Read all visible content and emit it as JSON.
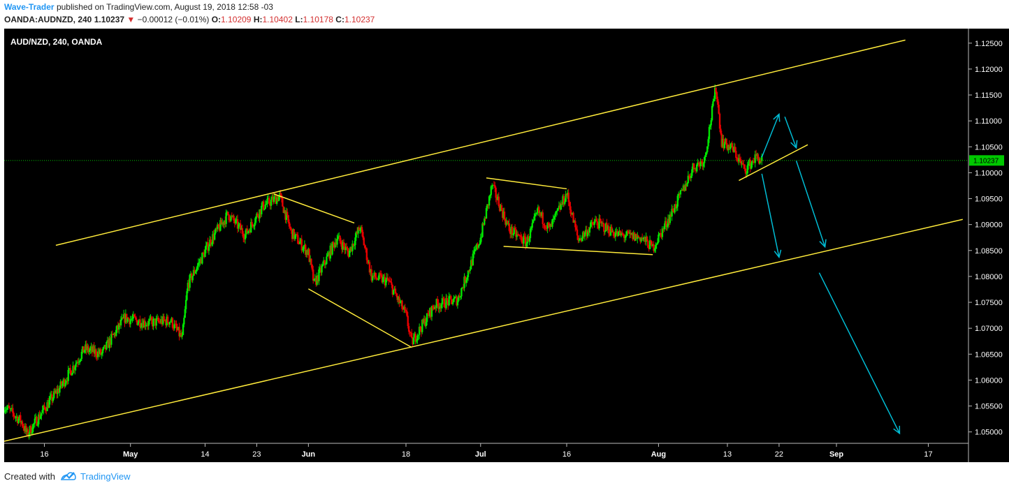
{
  "header": {
    "author": "Wave-Trader",
    "published_text": "published on TradingView.com, August 19, 2018 12:58 -03",
    "symbol": "OANDA:AUDNZD, 240",
    "last": "1.10237",
    "change_arrow": "▼",
    "change": "−0.00012 (−0.01%)",
    "o_label": "O:",
    "o_value": "1.10209",
    "h_label": "H:",
    "h_value": "1.10402",
    "l_label": "L:",
    "l_value": "1.10178",
    "c_label": "C:",
    "c_value": "1.10237"
  },
  "footer": {
    "created_with": "Created with",
    "brand": "TradingView"
  },
  "chart_data": {
    "type": "candlestick",
    "title": "AUD/NZD, 240, OANDA",
    "price_label": "1.10237",
    "last_price": 1.10237,
    "ylim": [
      1.0478,
      1.1278
    ],
    "y_ticks": [
      "1.12500",
      "1.12000",
      "1.11500",
      "1.11000",
      "1.10500",
      "1.10000",
      "1.09500",
      "1.09000",
      "1.08500",
      "1.08000",
      "1.07500",
      "1.07000",
      "1.06500",
      "1.06000",
      "1.05500",
      "1.05000"
    ],
    "x_ticks": [
      "16",
      "May",
      "14",
      "23",
      "Jun",
      "18",
      "Jul",
      "16",
      "Aug",
      "13",
      "22",
      "Sep",
      "17"
    ],
    "x_tick_dates": [
      "2018-04-16",
      "2018-05-01",
      "2018-05-14",
      "2018-05-23",
      "2018-06-01",
      "2018-06-18",
      "2018-07-01",
      "2018-07-16",
      "2018-08-01",
      "2018-08-13",
      "2018-08-22",
      "2018-09-01",
      "2018-09-17"
    ],
    "colors": {
      "background": "#000000",
      "up": "#00e600",
      "down": "#e60000",
      "trendline": "#ffeb3b",
      "projection": "#00bcd4",
      "price_line": "#00c800"
    },
    "price_path": [
      [
        "2018-04-09",
        1.055
      ],
      [
        "2018-04-12",
        1.052
      ],
      [
        "2018-04-13",
        1.0495
      ],
      [
        "2018-04-16",
        1.0545
      ],
      [
        "2018-04-19",
        1.059
      ],
      [
        "2018-04-23",
        1.066
      ],
      [
        "2018-04-26",
        1.065
      ],
      [
        "2018-04-30",
        1.072
      ],
      [
        "2018-05-04",
        1.071
      ],
      [
        "2018-05-08",
        1.0715
      ],
      [
        "2018-05-10",
        1.068
      ],
      [
        "2018-05-11",
        1.0785
      ],
      [
        "2018-05-15",
        1.087
      ],
      [
        "2018-05-18",
        1.092
      ],
      [
        "2018-05-21",
        1.088
      ],
      [
        "2018-05-24",
        1.0935
      ],
      [
        "2018-05-27",
        1.0955
      ],
      [
        "2018-05-29",
        1.0885
      ],
      [
        "2018-06-01",
        1.0845
      ],
      [
        "2018-06-02",
        1.0785
      ],
      [
        "2018-06-06",
        1.0875
      ],
      [
        "2018-06-08",
        1.0845
      ],
      [
        "2018-06-10",
        1.0895
      ],
      [
        "2018-06-12",
        1.08
      ],
      [
        "2018-06-15",
        1.079
      ],
      [
        "2018-06-18",
        1.0725
      ],
      [
        "2018-06-19",
        1.0672
      ],
      [
        "2018-06-23",
        1.0745
      ],
      [
        "2018-06-27",
        1.0755
      ],
      [
        "2018-07-01",
        1.0875
      ],
      [
        "2018-07-03",
        1.0975
      ],
      [
        "2018-07-06",
        1.089
      ],
      [
        "2018-07-09",
        1.0865
      ],
      [
        "2018-07-11",
        1.0925
      ],
      [
        "2018-07-13",
        1.089
      ],
      [
        "2018-07-16",
        1.096
      ],
      [
        "2018-07-18",
        1.087
      ],
      [
        "2018-07-21",
        1.0905
      ],
      [
        "2018-07-25",
        1.088
      ],
      [
        "2018-07-29",
        1.0875
      ],
      [
        "2018-07-31",
        1.0855
      ],
      [
        "2018-08-02",
        1.0895
      ],
      [
        "2018-08-05",
        1.096
      ],
      [
        "2018-08-07",
        1.101
      ],
      [
        "2018-08-09",
        1.1025
      ],
      [
        "2018-08-11",
        1.1165
      ],
      [
        "2018-08-12",
        1.106
      ],
      [
        "2018-08-14",
        1.1045
      ],
      [
        "2018-08-16",
        1.1005
      ],
      [
        "2018-08-18",
        1.103
      ],
      [
        "2018-08-19",
        1.10237
      ]
    ],
    "annotations": [
      {
        "type": "trendline",
        "from": [
          "2018-04-18",
          1.086
        ],
        "to": [
          "2018-09-13",
          1.1256
        ],
        "label": ""
      },
      {
        "type": "trendline",
        "from": [
          "2018-04-09",
          1.0482
        ],
        "to": [
          "2018-09-23",
          1.091
        ],
        "label": ""
      },
      {
        "type": "trendline",
        "from": [
          "2018-05-26",
          1.0959
        ],
        "to": [
          "2018-06-09",
          1.0903
        ],
        "label": ""
      },
      {
        "type": "trendline",
        "from": [
          "2018-06-01",
          1.0776
        ],
        "to": [
          "2018-06-19",
          1.0663
        ],
        "label": ""
      },
      {
        "type": "trendline",
        "from": [
          "2018-07-02",
          1.099
        ],
        "to": [
          "2018-07-16",
          1.0969
        ],
        "label": ""
      },
      {
        "type": "trendline",
        "from": [
          "2018-07-05",
          1.0858
        ],
        "to": [
          "2018-07-31",
          1.0842
        ],
        "label": ""
      },
      {
        "type": "trendline",
        "from": [
          "2018-08-15",
          1.0985
        ],
        "to": [
          "2018-08-27",
          1.1054
        ],
        "label": ""
      },
      {
        "type": "projection_arrow",
        "from": [
          "2018-08-19",
          1.103
        ],
        "to": [
          "2018-08-22",
          1.1113
        ],
        "label": ""
      },
      {
        "type": "projection_arrow",
        "from": [
          "2018-08-23",
          1.1108
        ],
        "to": [
          "2018-08-25",
          1.1048
        ],
        "label": ""
      },
      {
        "type": "projection_arrow",
        "from": [
          "2018-08-19",
          1.0998
        ],
        "to": [
          "2018-08-22",
          1.0837
        ],
        "label": ""
      },
      {
        "type": "projection_arrow",
        "from": [
          "2018-08-25",
          1.1023
        ],
        "to": [
          "2018-08-30",
          1.0857
        ],
        "label": ""
      },
      {
        "type": "projection_arrow",
        "from": [
          "2018-08-29",
          1.0807
        ],
        "to": [
          "2018-09-12",
          1.0497
        ],
        "label": ""
      }
    ]
  }
}
